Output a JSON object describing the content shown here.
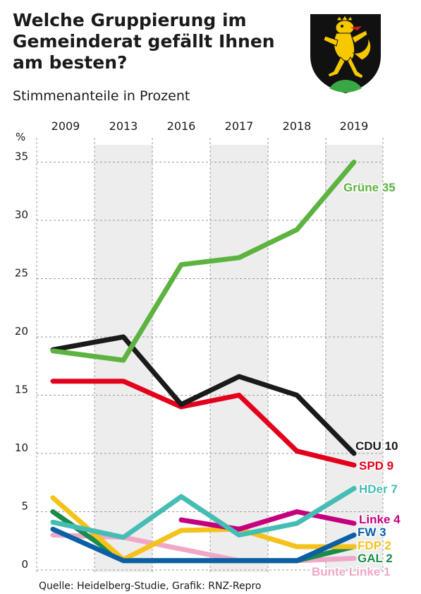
{
  "title": "Welche Gruppierung im Gemeinderat gefällt Ihnen am besten?",
  "subtitle": "Stimmenanteile in Prozent",
  "source": "Quelle: Heidelberg-Studie, Grafik: RNZ-Repro",
  "crest_icon": "heidelberg-coat-of-arms-lion",
  "chart_data": {
    "type": "line",
    "ylabel": "%",
    "x": [
      "2009",
      "2013",
      "2016",
      "2017",
      "2018",
      "2019"
    ],
    "y_ticks": [
      "0",
      "5",
      "10",
      "15",
      "20",
      "25",
      "30",
      "35"
    ],
    "ylim": [
      0,
      36
    ],
    "grid": true,
    "shaded_columns": [
      "2013",
      "2017",
      "2019"
    ],
    "series": [
      {
        "name": "Grüne",
        "label": "Grüne 35",
        "color": "#5db33f",
        "values": [
          18.8,
          18,
          26.2,
          26.8,
          29.2,
          35
        ]
      },
      {
        "name": "CDU",
        "label": "CDU 10",
        "color": "#1a1a1a",
        "values": [
          18.9,
          20,
          14.2,
          16.6,
          15,
          10
        ]
      },
      {
        "name": "SPD",
        "label": "SPD 9",
        "color": "#e3001b",
        "values": [
          16.2,
          16.2,
          14,
          15,
          10.2,
          9
        ]
      },
      {
        "name": "HDer",
        "label": "HDer 7",
        "color": "#45bdb4",
        "values": [
          4.1,
          2.8,
          6.3,
          3,
          4,
          7
        ]
      },
      {
        "name": "Linke",
        "label": "Linke 4",
        "color": "#c5007f",
        "values": [
          null,
          null,
          4.3,
          3.5,
          5,
          4
        ]
      },
      {
        "name": "FW",
        "label": "FW 3",
        "color": "#0a5fa5",
        "values": [
          3.5,
          0.8,
          0.8,
          0.8,
          0.8,
          3
        ]
      },
      {
        "name": "FDP",
        "label": "FDP 2",
        "color": "#f5c21b",
        "values": [
          6.2,
          0.9,
          3.4,
          3.5,
          2,
          2
        ]
      },
      {
        "name": "GAL",
        "label": "GAL 2",
        "color": "#1b8a4a",
        "values": [
          5,
          0.8,
          0.8,
          0.8,
          0.8,
          2
        ]
      },
      {
        "name": "Bunte Linke",
        "label": "Bunte Linke 1",
        "color": "#f0a8c8",
        "values": [
          3,
          2.8,
          1.8,
          0.8,
          0.8,
          1
        ]
      }
    ]
  }
}
